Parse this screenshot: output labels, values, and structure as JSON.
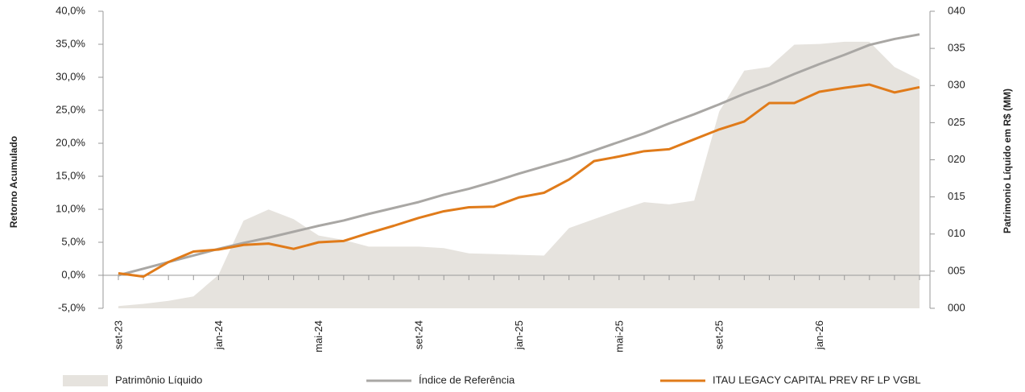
{
  "chart_data": {
    "type": "line",
    "ylabel": "Retorno Acumulado",
    "y2label": "Patrimonio Líquido em R$ (MM)",
    "categories": [
      "set-23",
      null,
      null,
      null,
      "jan-24",
      null,
      null,
      null,
      "mai-24",
      null,
      null,
      null,
      "set-24",
      null,
      null,
      null,
      "jan-25",
      null,
      null,
      null,
      "mai-25",
      null,
      null,
      null,
      "set-25",
      null,
      null,
      null,
      "jan-26",
      null,
      null,
      null,
      null
    ],
    "ylim": [
      -5,
      40
    ],
    "yticks": [
      {
        "value": -5,
        "label": "-5,0%"
      },
      {
        "value": 0,
        "label": "0,0%"
      },
      {
        "value": 5,
        "label": "5,0%"
      },
      {
        "value": 10,
        "label": "10,0%"
      },
      {
        "value": 15,
        "label": "15,0%"
      },
      {
        "value": 20,
        "label": "20,0%"
      },
      {
        "value": 25,
        "label": "25,0%"
      },
      {
        "value": 30,
        "label": "30,0%"
      },
      {
        "value": 35,
        "label": "35,0%"
      },
      {
        "value": 40,
        "label": "40,0%"
      }
    ],
    "y2lim": [
      0,
      40
    ],
    "y2ticks": [
      {
        "value": 0,
        "label": "000"
      },
      {
        "value": 5,
        "label": "005"
      },
      {
        "value": 10,
        "label": "010"
      },
      {
        "value": 15,
        "label": "015"
      },
      {
        "value": 20,
        "label": "020"
      },
      {
        "value": 25,
        "label": "025"
      },
      {
        "value": 30,
        "label": "030"
      },
      {
        "value": 35,
        "label": "035"
      },
      {
        "value": 40,
        "label": "040"
      }
    ],
    "series": [
      {
        "name": "Patrimônio Líquido",
        "type": "area",
        "axis": "y2",
        "color": "#e6e3de",
        "values": [
          0.3,
          0.6,
          1.0,
          1.6,
          4.5,
          11.8,
          13.3,
          12.0,
          9.8,
          9.2,
          8.3,
          8.3,
          8.3,
          8.1,
          7.4,
          7.3,
          7.2,
          7.1,
          10.8,
          12.0,
          13.2,
          14.3,
          14.0,
          14.5,
          26.5,
          32.0,
          32.5,
          35.5,
          35.6,
          35.9,
          35.9,
          32.5,
          30.8
        ]
      },
      {
        "name": "Índice de Referência",
        "type": "line",
        "color": "#a9a7a4",
        "values": [
          0.0,
          1.0,
          2.0,
          3.0,
          4.0,
          4.9,
          5.7,
          6.6,
          7.5,
          8.3,
          9.3,
          10.2,
          11.1,
          12.2,
          13.1,
          14.2,
          15.4,
          16.5,
          17.6,
          18.9,
          20.2,
          21.5,
          23.0,
          24.4,
          25.9,
          27.5,
          28.9,
          30.5,
          32.0,
          33.4,
          34.9,
          35.8,
          36.5
        ]
      },
      {
        "name": "ITAU LEGACY CAPITAL PREV RF LP VGBL",
        "type": "line",
        "color": "#e07b1a",
        "values": [
          0.3,
          -0.2,
          2.0,
          3.6,
          3.9,
          4.6,
          4.8,
          4.0,
          5.0,
          5.2,
          6.4,
          7.5,
          8.7,
          9.7,
          10.3,
          10.4,
          11.8,
          12.5,
          14.5,
          17.3,
          18.0,
          18.8,
          19.1,
          20.6,
          22.1,
          23.3,
          26.1,
          26.1,
          27.8,
          28.4,
          28.9,
          27.7,
          28.5
        ]
      }
    ]
  }
}
